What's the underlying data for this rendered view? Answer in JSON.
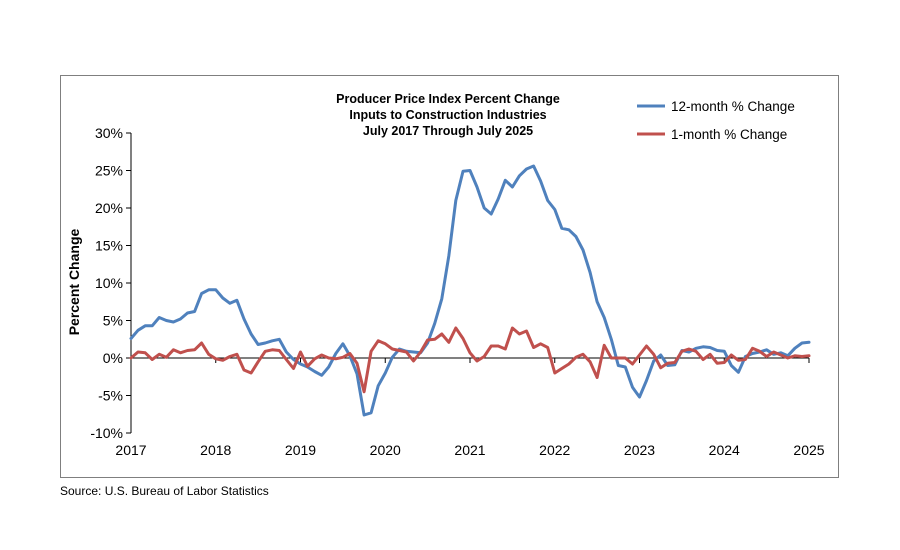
{
  "chart_data": {
    "type": "line",
    "title": [
      "Producer Price Index Percent Change",
      "Inputs to Construction Industries",
      "July 2017 Through July 2025"
    ],
    "xlabel": "",
    "ylabel": "Percent Change",
    "ylim": [
      -10,
      30
    ],
    "xlim": [
      2017.0,
      2025.0
    ],
    "yticks": [
      -10,
      -5,
      0,
      5,
      10,
      15,
      20,
      25,
      30
    ],
    "ytick_labels": [
      "-10%",
      "-5%",
      "0%",
      "5%",
      "10%",
      "15%",
      "20%",
      "25%",
      "30%"
    ],
    "xticks": [
      2017,
      2018,
      2019,
      2020,
      2021,
      2022,
      2023,
      2024,
      2025
    ],
    "xtick_labels": [
      "2017",
      "2018",
      "2019",
      "2020",
      "2021",
      "2022",
      "2023",
      "2024",
      "2025"
    ],
    "legend_position": "top-right",
    "grid": false,
    "series": [
      {
        "name": "12-month % Change",
        "color": "#4f81bd",
        "x": [
          2017.0,
          2017.083,
          2017.167,
          2017.25,
          2017.333,
          2017.417,
          2017.5,
          2017.583,
          2017.667,
          2017.75,
          2017.833,
          2017.917,
          2018.0,
          2018.083,
          2018.167,
          2018.25,
          2018.333,
          2018.417,
          2018.5,
          2018.583,
          2018.667,
          2018.75,
          2018.833,
          2018.917,
          2019.0,
          2019.083,
          2019.167,
          2019.25,
          2019.333,
          2019.417,
          2019.5,
          2019.583,
          2019.667,
          2019.75,
          2019.833,
          2019.917,
          2020.0,
          2020.083,
          2020.167,
          2020.25,
          2020.333,
          2020.417,
          2020.5,
          2020.583,
          2020.667,
          2020.75,
          2020.833,
          2020.917,
          2021.0,
          2021.083,
          2021.167,
          2021.25,
          2021.333,
          2021.417,
          2021.5,
          2021.583,
          2021.667,
          2021.75,
          2021.833,
          2021.917,
          2022.0,
          2022.083,
          2022.167,
          2022.25,
          2022.333,
          2022.417,
          2022.5,
          2022.583,
          2022.667,
          2022.75,
          2022.833,
          2022.917,
          2023.0,
          2023.083,
          2023.167,
          2023.25,
          2023.333,
          2023.417,
          2023.5,
          2023.583,
          2023.667,
          2023.75,
          2023.833,
          2023.917,
          2024.0,
          2024.083,
          2024.167,
          2024.25,
          2024.333,
          2024.417,
          2024.5,
          2024.583,
          2024.667,
          2024.75,
          2024.833,
          2024.917,
          2025.0
        ],
        "values": [
          2.6,
          3.7,
          4.3,
          4.3,
          5.4,
          5.0,
          4.8,
          5.2,
          6.0,
          6.2,
          8.6,
          9.1,
          9.1,
          8.0,
          7.3,
          7.7,
          5.2,
          3.2,
          1.8,
          2.0,
          2.3,
          2.5,
          0.8,
          -0.2,
          -0.8,
          -1.2,
          -1.8,
          -2.3,
          -1.2,
          0.6,
          1.9,
          0.3,
          -2.1,
          -7.6,
          -7.3,
          -3.7,
          -2.0,
          0.1,
          1.2,
          0.9,
          0.8,
          0.7,
          2.0,
          4.6,
          7.9,
          13.6,
          21.0,
          24.9,
          25.0,
          22.8,
          20.0,
          19.2,
          21.2,
          23.7,
          22.8,
          24.3,
          25.2,
          25.6,
          23.6,
          21.0,
          19.8,
          17.3,
          17.1,
          16.2,
          14.4,
          11.4,
          7.5,
          5.4,
          2.5,
          -1.0,
          -1.2,
          -3.9,
          -5.2,
          -3.0,
          -0.4,
          0.4,
          -1.0,
          -0.9,
          1.0,
          0.8,
          1.3,
          1.5,
          1.4,
          1.0,
          0.9,
          -1.0,
          -1.9,
          0.2,
          0.6,
          0.8,
          1.1,
          0.5,
          0.7,
          0.3,
          1.3,
          2.0,
          2.1
        ]
      },
      {
        "name": "1-month % Change",
        "color": "#c0504d",
        "x": [
          2017.0,
          2017.083,
          2017.167,
          2017.25,
          2017.333,
          2017.417,
          2017.5,
          2017.583,
          2017.667,
          2017.75,
          2017.833,
          2017.917,
          2018.0,
          2018.083,
          2018.167,
          2018.25,
          2018.333,
          2018.417,
          2018.5,
          2018.583,
          2018.667,
          2018.75,
          2018.833,
          2018.917,
          2019.0,
          2019.083,
          2019.167,
          2019.25,
          2019.333,
          2019.417,
          2019.5,
          2019.583,
          2019.667,
          2019.75,
          2019.833,
          2019.917,
          2020.0,
          2020.083,
          2020.167,
          2020.25,
          2020.333,
          2020.417,
          2020.5,
          2020.583,
          2020.667,
          2020.75,
          2020.833,
          2020.917,
          2021.0,
          2021.083,
          2021.167,
          2021.25,
          2021.333,
          2021.417,
          2021.5,
          2021.583,
          2021.667,
          2021.75,
          2021.833,
          2021.917,
          2022.0,
          2022.083,
          2022.167,
          2022.25,
          2022.333,
          2022.417,
          2022.5,
          2022.583,
          2022.667,
          2022.75,
          2022.833,
          2022.917,
          2023.0,
          2023.083,
          2023.167,
          2023.25,
          2023.333,
          2023.417,
          2023.5,
          2023.583,
          2023.667,
          2023.75,
          2023.833,
          2023.917,
          2024.0,
          2024.083,
          2024.167,
          2024.25,
          2024.333,
          2024.417,
          2024.5,
          2024.583,
          2024.667,
          2024.75,
          2024.833,
          2024.917,
          2025.0
        ],
        "values": [
          0.0,
          0.8,
          0.7,
          -0.2,
          0.5,
          0.1,
          1.1,
          0.7,
          1.0,
          1.1,
          2.0,
          0.5,
          -0.1,
          -0.3,
          0.2,
          0.5,
          -1.6,
          -2.0,
          -0.5,
          0.9,
          1.1,
          1.0,
          -0.2,
          -1.4,
          0.8,
          -1.1,
          -0.1,
          0.4,
          0.0,
          -0.1,
          0.1,
          0.6,
          -0.7,
          -4.5,
          0.9,
          2.3,
          1.9,
          1.2,
          1.0,
          0.8,
          -0.4,
          0.8,
          2.4,
          2.5,
          3.2,
          2.1,
          4.0,
          2.6,
          0.7,
          -0.4,
          0.2,
          1.6,
          1.6,
          1.2,
          4.0,
          3.2,
          3.6,
          1.4,
          1.9,
          1.4,
          -2.0,
          -1.4,
          -0.8,
          0.1,
          0.5,
          -0.5,
          -2.6,
          1.7,
          0.0,
          0.0,
          0.0,
          -0.8,
          0.4,
          1.6,
          0.5,
          -1.3,
          -0.7,
          -0.6,
          0.9,
          1.2,
          0.9,
          -0.2,
          0.5,
          -0.7,
          -0.6,
          0.4,
          -0.3,
          -0.2,
          1.3,
          0.9,
          0.2,
          0.8,
          0.4,
          0.0,
          0.3,
          0.2,
          0.3
        ]
      }
    ]
  },
  "source_note": "Source: U.S. Bureau of Labor Statistics"
}
